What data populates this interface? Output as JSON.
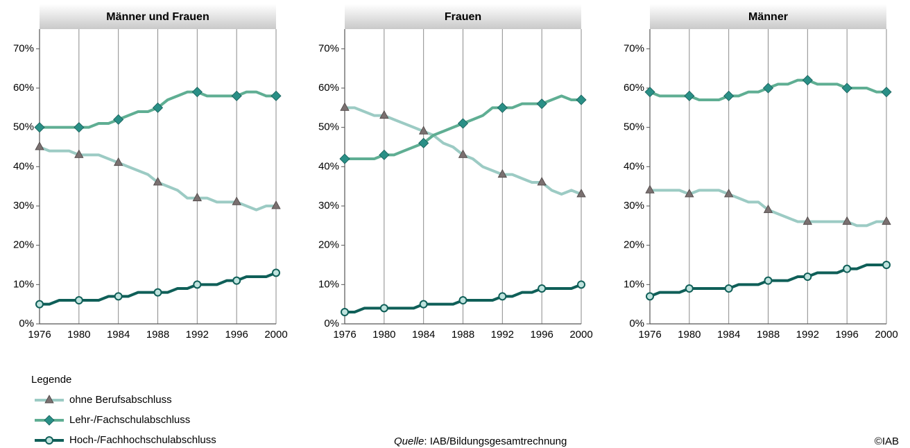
{
  "chart_data": [
    {
      "type": "line",
      "title": "Männer und Frauen",
      "x": [
        1976,
        1977,
        1978,
        1979,
        1980,
        1981,
        1982,
        1983,
        1984,
        1985,
        1986,
        1987,
        1988,
        1989,
        1990,
        1991,
        1992,
        1993,
        1994,
        1995,
        1996,
        1997,
        1998,
        1999,
        2000
      ],
      "xlim": [
        1976,
        2000
      ],
      "xticks": [
        1976,
        1980,
        1984,
        1988,
        1992,
        1996,
        2000
      ],
      "ylim": [
        0,
        75
      ],
      "yticks": [
        {
          "value": 0,
          "label": "0%"
        },
        {
          "value": 10,
          "label": "10%"
        },
        {
          "value": 20,
          "label": "20%"
        },
        {
          "value": 30,
          "label": "30%"
        },
        {
          "value": 40,
          "label": "40%"
        },
        {
          "value": 50,
          "label": "50%"
        },
        {
          "value": 60,
          "label": "60%"
        },
        {
          "value": 70,
          "label": "70%"
        }
      ],
      "grid": true,
      "series": [
        {
          "name": "ohne Berufsabschluss",
          "color": "#9ccbc4",
          "marker": "triangle",
          "marker_color": "#7a7070",
          "values": [
            45,
            44,
            44,
            44,
            43,
            43,
            43,
            42,
            41,
            40,
            39,
            38,
            36,
            35,
            34,
            32,
            32,
            32,
            31,
            31,
            31,
            30,
            29,
            30,
            30
          ]
        },
        {
          "name": "Lehr-/Fachschulabschluss",
          "color": "#5fae93",
          "marker": "diamond",
          "marker_color": "#2a8f86",
          "values": [
            50,
            50,
            50,
            50,
            50,
            50,
            51,
            51,
            52,
            53,
            54,
            54,
            55,
            57,
            58,
            59,
            59,
            58,
            58,
            58,
            58,
            59,
            59,
            58,
            58
          ]
        },
        {
          "name": "Hoch-/Fachhochschulabschluss",
          "color": "#0f5f58",
          "marker": "circle",
          "marker_color": "#0f5f58",
          "values": [
            5,
            5,
            6,
            6,
            6,
            6,
            6,
            7,
            7,
            7,
            8,
            8,
            8,
            8,
            9,
            9,
            10,
            10,
            10,
            11,
            11,
            12,
            12,
            12,
            13
          ]
        }
      ]
    },
    {
      "type": "line",
      "title": "Frauen",
      "x": [
        1976,
        1977,
        1978,
        1979,
        1980,
        1981,
        1982,
        1983,
        1984,
        1985,
        1986,
        1987,
        1988,
        1989,
        1990,
        1991,
        1992,
        1993,
        1994,
        1995,
        1996,
        1997,
        1998,
        1999,
        2000
      ],
      "xlim": [
        1976,
        2000
      ],
      "xticks": [
        1976,
        1980,
        1984,
        1988,
        1992,
        1996,
        2000
      ],
      "ylim": [
        0,
        75
      ],
      "yticks": [
        {
          "value": 0,
          "label": "0%"
        },
        {
          "value": 10,
          "label": "10%"
        },
        {
          "value": 20,
          "label": "20%"
        },
        {
          "value": 30,
          "label": "30%"
        },
        {
          "value": 40,
          "label": "40%"
        },
        {
          "value": 50,
          "label": "50%"
        },
        {
          "value": 60,
          "label": "60%"
        },
        {
          "value": 70,
          "label": "70%"
        }
      ],
      "grid": true,
      "series": [
        {
          "name": "ohne Berufsabschluss",
          "color": "#9ccbc4",
          "marker": "triangle",
          "marker_color": "#7a7070",
          "values": [
            55,
            55,
            54,
            53,
            53,
            52,
            51,
            50,
            49,
            48,
            46,
            45,
            43,
            42,
            40,
            39,
            38,
            38,
            37,
            36,
            36,
            34,
            33,
            34,
            33
          ]
        },
        {
          "name": "Lehr-/Fachschulabschluss",
          "color": "#5fae93",
          "marker": "diamond",
          "marker_color": "#2a8f86",
          "values": [
            42,
            42,
            42,
            42,
            43,
            43,
            44,
            45,
            46,
            48,
            49,
            50,
            51,
            52,
            53,
            55,
            55,
            55,
            56,
            56,
            56,
            57,
            58,
            57,
            57
          ]
        },
        {
          "name": "Hoch-/Fachhochschulabschluss",
          "color": "#0f5f58",
          "marker": "circle",
          "marker_color": "#0f5f58",
          "values": [
            3,
            3,
            4,
            4,
            4,
            4,
            4,
            4,
            5,
            5,
            5,
            5,
            6,
            6,
            6,
            6,
            7,
            7,
            8,
            8,
            9,
            9,
            9,
            9,
            10
          ]
        }
      ]
    },
    {
      "type": "line",
      "title": "Männer",
      "x": [
        1976,
        1977,
        1978,
        1979,
        1980,
        1981,
        1982,
        1983,
        1984,
        1985,
        1986,
        1987,
        1988,
        1989,
        1990,
        1991,
        1992,
        1993,
        1994,
        1995,
        1996,
        1997,
        1998,
        1999,
        2000
      ],
      "xlim": [
        1976,
        2000
      ],
      "xticks": [
        1976,
        1980,
        1984,
        1988,
        1992,
        1996,
        2000
      ],
      "ylim": [
        0,
        75
      ],
      "yticks": [
        {
          "value": 0,
          "label": "0%"
        },
        {
          "value": 10,
          "label": "10%"
        },
        {
          "value": 20,
          "label": "20%"
        },
        {
          "value": 30,
          "label": "30%"
        },
        {
          "value": 40,
          "label": "40%"
        },
        {
          "value": 50,
          "label": "50%"
        },
        {
          "value": 60,
          "label": "60%"
        },
        {
          "value": 70,
          "label": "70%"
        }
      ],
      "grid": true,
      "series": [
        {
          "name": "ohne Berufsabschluss",
          "color": "#9ccbc4",
          "marker": "triangle",
          "marker_color": "#7a7070",
          "values": [
            34,
            34,
            34,
            34,
            33,
            34,
            34,
            34,
            33,
            32,
            31,
            31,
            29,
            28,
            27,
            26,
            26,
            26,
            26,
            26,
            26,
            25,
            25,
            26,
            26
          ]
        },
        {
          "name": "Lehr-/Fachschulabschluss",
          "color": "#5fae93",
          "marker": "diamond",
          "marker_color": "#2a8f86",
          "values": [
            59,
            58,
            58,
            58,
            58,
            57,
            57,
            57,
            58,
            58,
            59,
            59,
            60,
            61,
            61,
            62,
            62,
            61,
            61,
            61,
            60,
            60,
            60,
            59,
            59
          ]
        },
        {
          "name": "Hoch-/Fachhochschulabschluss",
          "color": "#0f5f58",
          "marker": "circle",
          "marker_color": "#0f5f58",
          "values": [
            7,
            8,
            8,
            8,
            9,
            9,
            9,
            9,
            9,
            10,
            10,
            10,
            11,
            11,
            11,
            12,
            12,
            13,
            13,
            13,
            14,
            14,
            15,
            15,
            15
          ]
        }
      ]
    }
  ],
  "legend_title": "Legende",
  "source_label": "Quelle",
  "source_text": ": IAB/Bildungsgesamtrechnung",
  "copyright": "©IAB"
}
